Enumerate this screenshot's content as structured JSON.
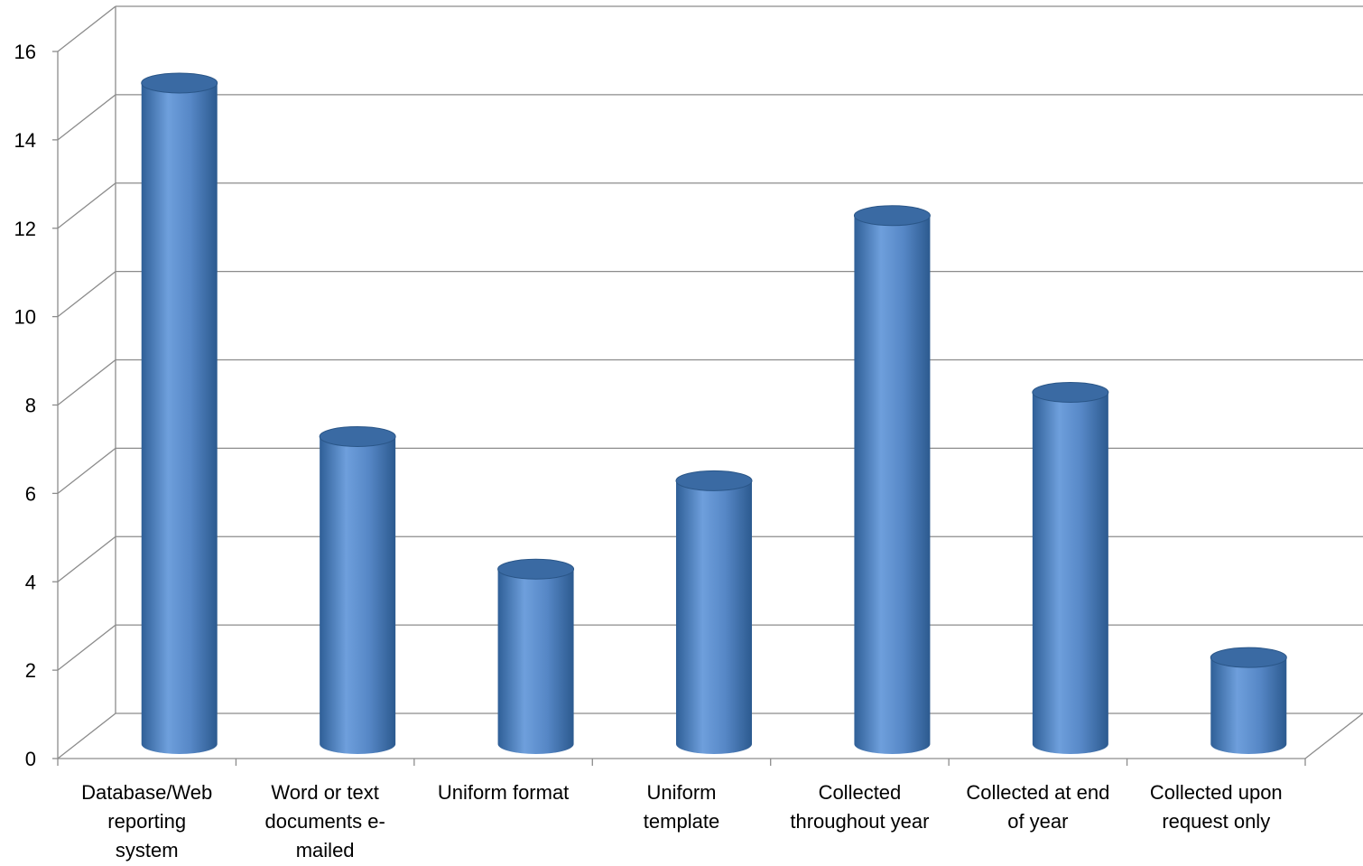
{
  "chart_data": {
    "type": "bar",
    "categories": [
      [
        "Database/Web",
        "reporting",
        "system"
      ],
      [
        "Word or text",
        "documents e-",
        "mailed"
      ],
      [
        "Uniform format"
      ],
      [
        "Uniform",
        "template"
      ],
      [
        "Collected",
        "throughout year"
      ],
      [
        "Collected at end",
        "of year"
      ],
      [
        "Collected upon",
        "request only"
      ]
    ],
    "values": [
      15,
      7,
      4,
      6,
      12,
      8,
      2
    ],
    "title": "",
    "xlabel": "",
    "ylabel": "",
    "ylim": [
      0,
      16
    ],
    "yticks": [
      0,
      2,
      4,
      6,
      8,
      10,
      12,
      14,
      16
    ],
    "grid": true,
    "legend": "none",
    "style": "3d-cylinder",
    "colors": {
      "bar_light": "#6e9fdc",
      "bar_mid": "#4f81bd",
      "bar_dark": "#2c5a8f",
      "bar_top": "#3a6aa3",
      "grid": "#8c8c8c",
      "text": "#000000"
    }
  }
}
